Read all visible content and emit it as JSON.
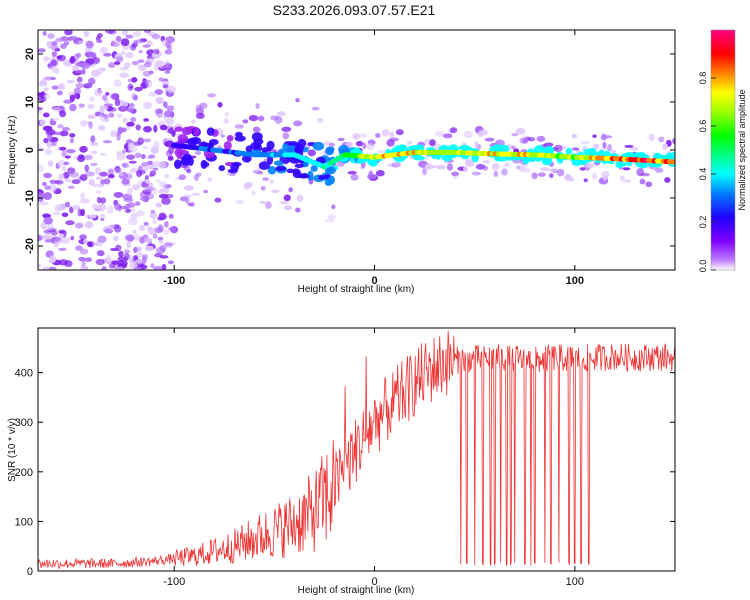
{
  "title": "S233.2026.093.07.57.E21",
  "chart_data": [
    {
      "type": "heatmap",
      "name": "spectrogram",
      "xlabel": "Height of straight line (km)",
      "ylabel": "Frequency (Hz)",
      "xlim": [
        -168,
        150
      ],
      "ylim": [
        -25,
        25
      ],
      "x_ticks": [
        -100,
        0,
        100
      ],
      "y_ticks": [
        -20,
        -10,
        0,
        10,
        20
      ],
      "colorbar": {
        "label": "Normalized spectral amplitude",
        "range": [
          0,
          1
        ],
        "ticks": [
          "0.0",
          "0.2",
          "0.4",
          "0.6",
          "0.8"
        ],
        "colors": [
          "#ffffff",
          "#a020f0",
          "#3000ff",
          "#0080ff",
          "#00ffff",
          "#00ff80",
          "#00ff00",
          "#a0ff00",
          "#ffff00",
          "#ff8000",
          "#ff0000",
          "#ff0080"
        ]
      },
      "ridge_frequency": [
        {
          "x": -100,
          "y": 1
        },
        {
          "x": -80,
          "y": 0
        },
        {
          "x": -60,
          "y": -1
        },
        {
          "x": -40,
          "y": -1
        },
        {
          "x": -25,
          "y": -3.5
        },
        {
          "x": -15,
          "y": -1
        },
        {
          "x": 0,
          "y": -1.5
        },
        {
          "x": 20,
          "y": -0.5
        },
        {
          "x": 40,
          "y": -0.5
        },
        {
          "x": 60,
          "y": -0.8
        },
        {
          "x": 80,
          "y": -1
        },
        {
          "x": 100,
          "y": -1.5
        },
        {
          "x": 120,
          "y": -1.8
        },
        {
          "x": 150,
          "y": -2.5
        }
      ],
      "ridge_amplitude": [
        {
          "x": -100,
          "y": 0.2
        },
        {
          "x": -80,
          "y": 0.25
        },
        {
          "x": -60,
          "y": 0.3
        },
        {
          "x": -40,
          "y": 0.35
        },
        {
          "x": -25,
          "y": 0.45
        },
        {
          "x": -15,
          "y": 0.55
        },
        {
          "x": 0,
          "y": 0.8
        },
        {
          "x": 20,
          "y": 0.75
        },
        {
          "x": 40,
          "y": 0.7
        },
        {
          "x": 60,
          "y": 0.8
        },
        {
          "x": 80,
          "y": 0.75
        },
        {
          "x": 100,
          "y": 0.7
        },
        {
          "x": 120,
          "y": 0.9
        },
        {
          "x": 150,
          "y": 0.95
        }
      ]
    },
    {
      "type": "line",
      "name": "snr",
      "xlabel": "Height of straight line (km)",
      "ylabel": "SNR (10 * v/v)",
      "xlim": [
        -168,
        150
      ],
      "ylim": [
        0,
        490
      ],
      "x_ticks": [
        -100,
        0,
        100
      ],
      "y_ticks": [
        0,
        100,
        200,
        300,
        400
      ],
      "color": "#ee3333",
      "series": [
        {
          "name": "SNR",
          "x": [
            -168,
            -150,
            -130,
            -110,
            -100,
            -90,
            -80,
            -70,
            -60,
            -50,
            -40,
            -30,
            -20,
            -10,
            0,
            5,
            10,
            15,
            20,
            25,
            30,
            35,
            40,
            50,
            60,
            70,
            80,
            90,
            100,
            110,
            120,
            130,
            140,
            150
          ],
          "y": [
            15,
            15,
            15,
            20,
            25,
            30,
            40,
            50,
            65,
            80,
            95,
            120,
            170,
            240,
            300,
            320,
            340,
            360,
            380,
            395,
            410,
            420,
            425,
            428,
            430,
            428,
            425,
            430,
            428,
            430,
            432,
            430,
            432,
            430
          ]
        }
      ],
      "dropout_x": [
        43,
        46,
        50,
        54,
        58,
        60,
        63,
        66,
        68,
        70,
        75,
        78,
        80,
        85,
        88,
        92,
        97,
        100,
        103,
        107
      ]
    }
  ]
}
